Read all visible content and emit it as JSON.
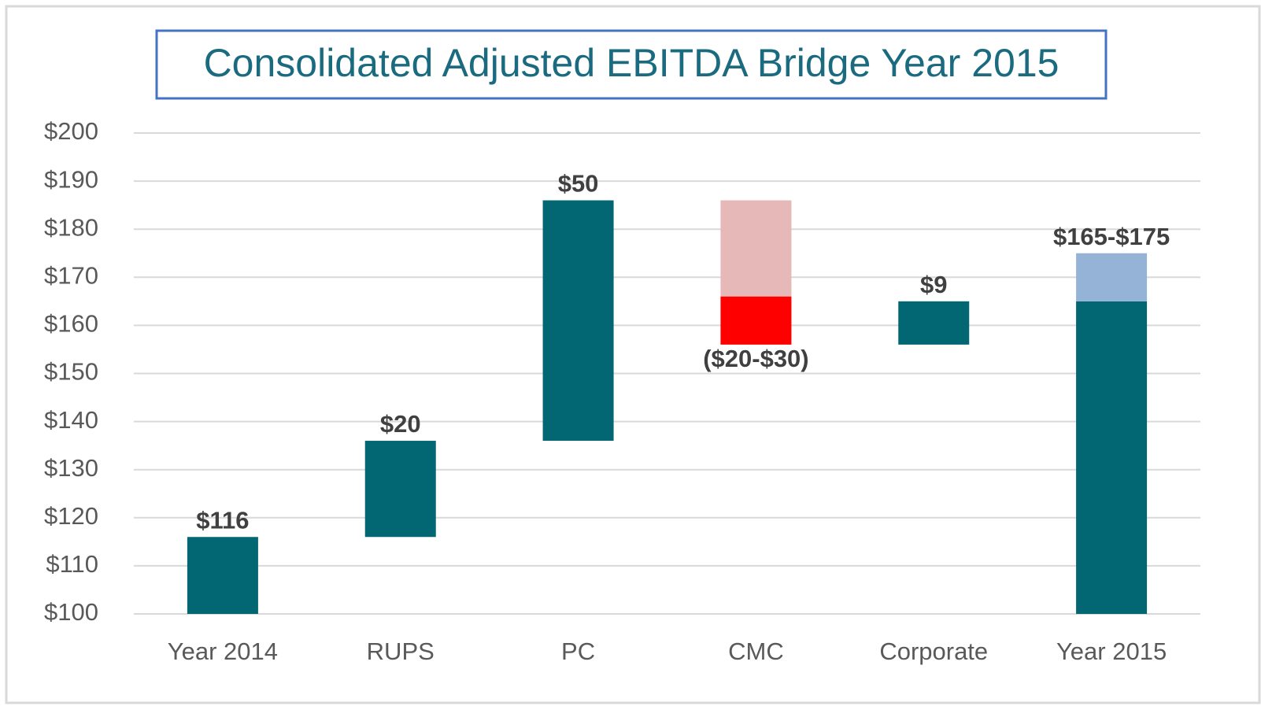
{
  "chart_data": {
    "type": "waterfall",
    "title": "Consolidated Adjusted EBITDA Bridge Year 2015",
    "categories": [
      "Year 2014",
      "RUPS",
      "PC",
      "CMC",
      "Corporate",
      "Year 2015"
    ],
    "measure": [
      "absolute",
      "relative",
      "relative",
      "relative",
      "relative",
      "absolute"
    ],
    "series": [
      {
        "values": [
          116,
          20,
          50,
          -20,
          9,
          165
        ],
        "colors": [
          "#036673",
          "#036673",
          "#036673",
          "#e6b8b7",
          "#036673",
          "#036673"
        ],
        "value_labels": [
          "$116",
          "$20",
          "$50",
          "($20-$30)",
          "$9",
          "$165-$175"
        ]
      },
      {
        "values": [
          null,
          null,
          null,
          -10,
          null,
          10
        ],
        "colors": [
          null,
          null,
          null,
          "#ff0000",
          null,
          "#95b3d7"
        ]
      }
    ],
    "ylim": [
      100,
      200
    ],
    "yticks": [
      {
        "value": 100,
        "label": "$100"
      },
      {
        "value": 110,
        "label": "$110"
      },
      {
        "value": 120,
        "label": "$120"
      },
      {
        "value": 130,
        "label": "$130"
      },
      {
        "value": 140,
        "label": "$140"
      },
      {
        "value": 150,
        "label": "$150"
      },
      {
        "value": 160,
        "label": "$160"
      },
      {
        "value": 170,
        "label": "$170"
      },
      {
        "value": 180,
        "label": "$180"
      },
      {
        "value": 190,
        "label": "$190"
      },
      {
        "value": 200,
        "label": "$200"
      }
    ],
    "grid": true
  }
}
